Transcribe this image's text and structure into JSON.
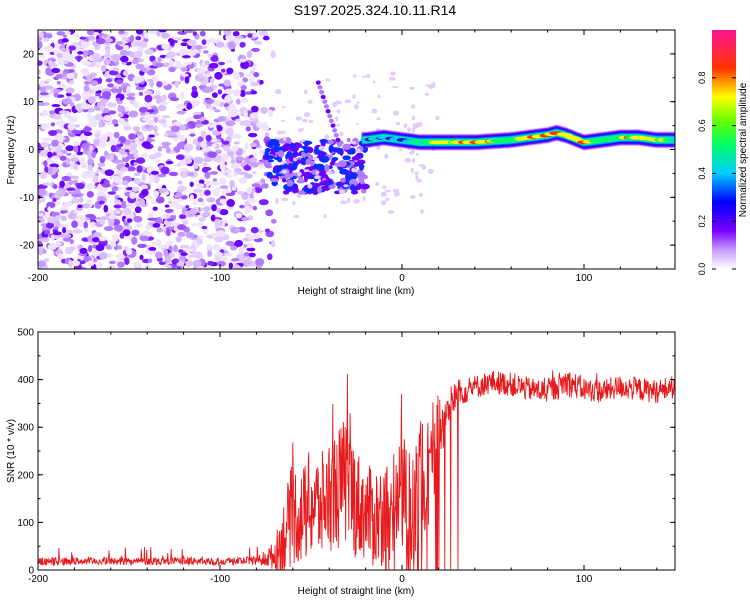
{
  "title": "S197.2025.324.10.11.R14",
  "chart_data": [
    {
      "type": "heatmap",
      "title": "S197.2025.324.10.11.R14",
      "xlabel": "Height of straight line (km)",
      "ylabel": "Frequency (Hz)",
      "xlim": [
        -200,
        150
      ],
      "ylim": [
        -25,
        25
      ],
      "xticks": [
        -200,
        -100,
        0,
        100
      ],
      "xtick_labels": [
        "-200",
        "-100",
        "0",
        "100"
      ],
      "yticks": [
        -20,
        -10,
        0,
        10,
        20
      ],
      "ytick_labels": [
        "-20",
        "-10",
        "0",
        "10",
        "20"
      ],
      "colorbar": {
        "label": "Normalized spectral amplitude",
        "range": [
          0,
          1
        ],
        "ticks": [
          0,
          0.2,
          0.4,
          0.6,
          0.8
        ],
        "tick_labels": [
          "0.0",
          "0.2",
          "0.4",
          "0.6",
          "0.8"
        ],
        "colors": [
          "#ffffff",
          "#9b30ff",
          "#0000ff",
          "#00ffff",
          "#00ff00",
          "#ffff00",
          "#ff0000",
          "#ff1493"
        ]
      },
      "ridge": {
        "description_values": "dominant frequency (Hz) vs height (km)",
        "x": [
          -20,
          -10,
          0,
          10,
          20,
          40,
          60,
          70,
          80,
          85,
          90,
          100,
          110,
          120,
          130,
          140,
          150
        ],
        "y": [
          2,
          2.5,
          2,
          1.5,
          1.5,
          1.5,
          2,
          2.5,
          3,
          3.5,
          3,
          1.5,
          2,
          2.5,
          2.5,
          2,
          2
        ],
        "amplitude": [
          0.5,
          0.5,
          0.4,
          0.6,
          0.75,
          0.9,
          0.7,
          0.85,
          0.95,
          0.9,
          0.7,
          0.8,
          0.65,
          0.75,
          0.85,
          0.7,
          0.6
        ]
      }
    },
    {
      "type": "line",
      "xlabel": "Height of straight line (km)",
      "ylabel": "SNR (10 * v/v)",
      "xlim": [
        -200,
        150
      ],
      "ylim": [
        0,
        500
      ],
      "xticks": [
        -200,
        -100,
        0,
        100
      ],
      "xtick_labels": [
        "-200",
        "-100",
        "0",
        "100"
      ],
      "yticks": [
        0,
        100,
        200,
        300,
        400,
        500
      ],
      "ytick_labels": [
        "0",
        "100",
        "200",
        "300",
        "400",
        "500"
      ],
      "color": "#ff0000",
      "series": [
        {
          "name": "SNR",
          "x": [
            -200,
            -180,
            -160,
            -140,
            -120,
            -100,
            -80,
            -70,
            -65,
            -60,
            -55,
            -50,
            -45,
            -40,
            -35,
            -30,
            -25,
            -20,
            -15,
            -10,
            -5,
            0,
            5,
            10,
            15,
            20,
            25,
            30,
            40,
            50,
            60,
            70,
            80,
            90,
            100,
            110,
            120,
            130,
            140,
            150
          ],
          "y": [
            18,
            18,
            19,
            18,
            19,
            18,
            20,
            30,
            70,
            120,
            110,
            140,
            130,
            160,
            170,
            190,
            140,
            120,
            110,
            120,
            140,
            160,
            150,
            180,
            220,
            280,
            340,
            370,
            385,
            395,
            390,
            380,
            375,
            395,
            380,
            375,
            385,
            380,
            375,
            385
          ],
          "noise_amplitude": [
            8,
            8,
            8,
            8,
            8,
            8,
            10,
            30,
            80,
            110,
            100,
            120,
            110,
            120,
            130,
            140,
            120,
            100,
            110,
            110,
            120,
            130,
            130,
            140,
            130,
            100,
            40,
            30,
            25,
            25,
            25,
            25,
            25,
            30,
            25,
            25,
            25,
            25,
            25,
            25
          ],
          "dropouts_x_range": [
            -10,
            32
          ]
        }
      ]
    }
  ]
}
